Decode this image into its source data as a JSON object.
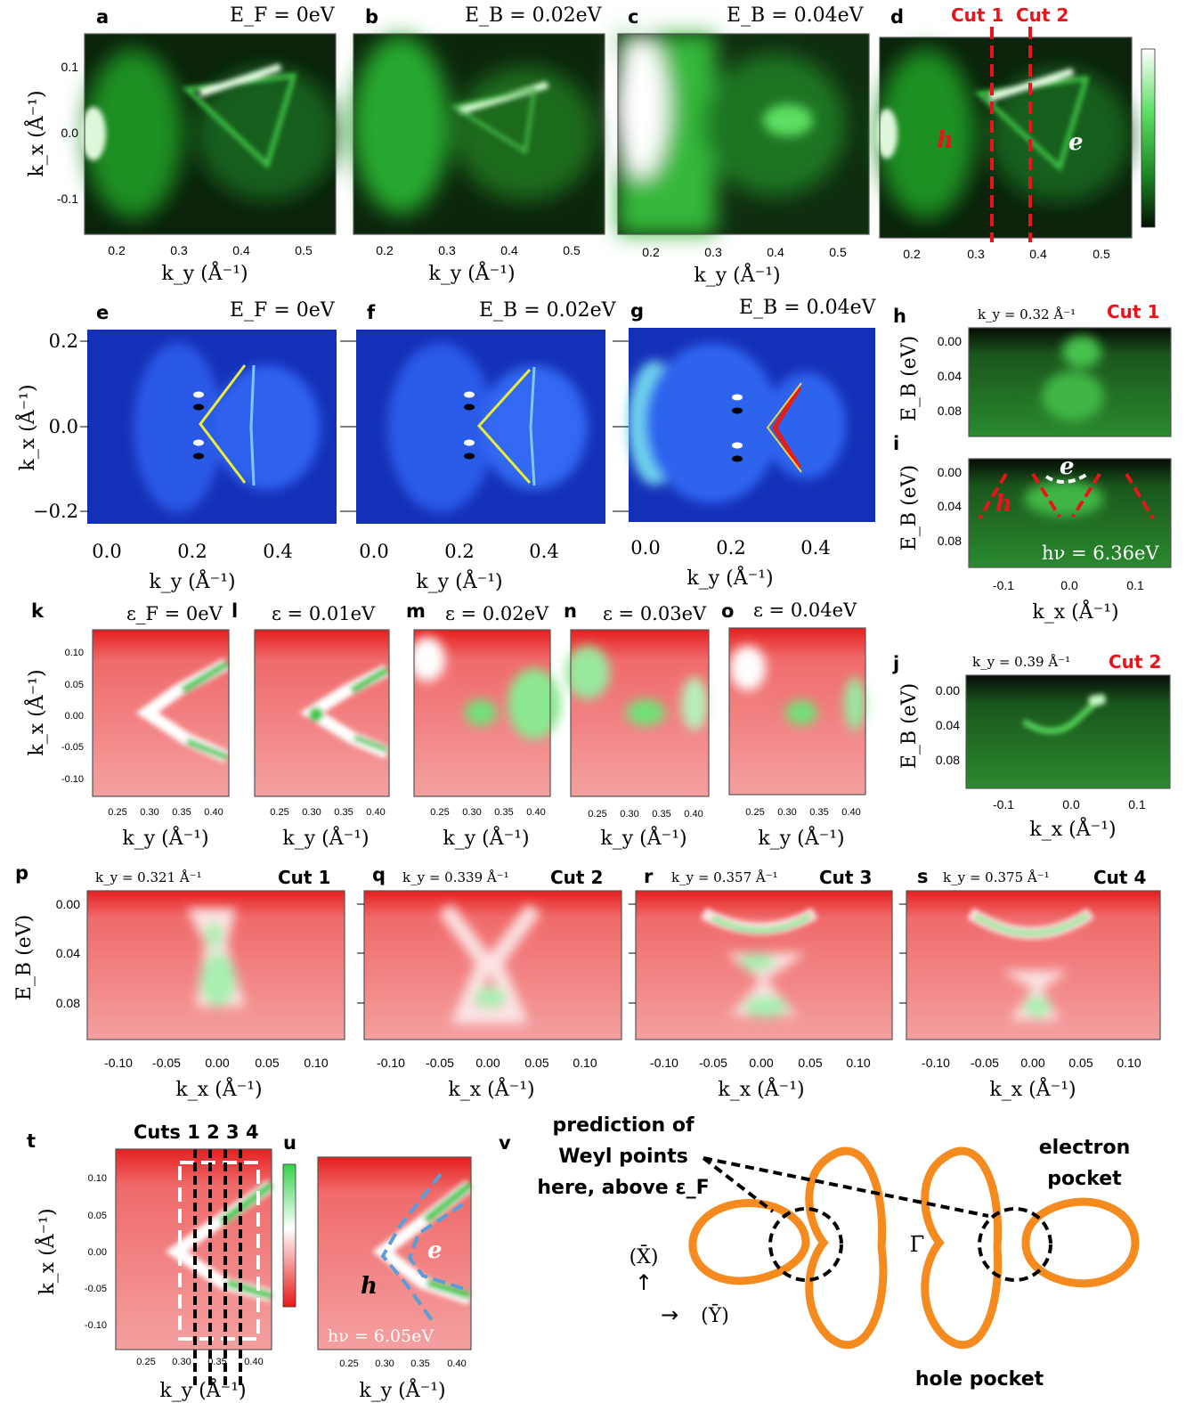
{
  "row1": {
    "panels": [
      {
        "label": "a",
        "title": "E_F = 0eV"
      },
      {
        "label": "b",
        "title": "E_B = 0.02eV"
      },
      {
        "label": "c",
        "title": "E_B = 0.04eV"
      },
      {
        "label": "d",
        "title": ""
      }
    ],
    "cut_labels": [
      "Cut 1",
      "Cut 2"
    ],
    "ylabel": "k_x (Å⁻¹)",
    "xlabel": "k_y (Å⁻¹)",
    "yticks": [
      "0.1",
      "0.0",
      "-0.1"
    ],
    "xticks": [
      "0.2",
      "0.3",
      "0.4",
      "0.5"
    ],
    "h": "h",
    "e": "e"
  },
  "row2": {
    "panels": [
      {
        "label": "e",
        "title": "E_F = 0eV"
      },
      {
        "label": "f",
        "title": "E_B = 0.02eV"
      },
      {
        "label": "g",
        "title": "E_B = 0.04eV"
      }
    ],
    "ylabel": "k_x (Å⁻¹)",
    "xlabel": "k_y (Å⁻¹)",
    "yticks": [
      "0.2",
      "0.0",
      "−0.2"
    ],
    "xticks": [
      "0.0",
      "0.2",
      "0.4"
    ]
  },
  "side": {
    "h": {
      "label": "h",
      "ky": "k_y = 0.32 Å⁻¹",
      "cut": "Cut 1"
    },
    "i": {
      "label": "i",
      "hv": "hν = 6.36eV",
      "h": "h",
      "e": "e"
    },
    "j": {
      "label": "j",
      "ky": "k_y = 0.39 Å⁻¹",
      "cut": "Cut 2"
    },
    "ylabel": "E_B (eV)",
    "yticks": [
      "0.00",
      "0.04",
      "0.08"
    ],
    "xticks": [
      "-0.1",
      "0.0",
      "0.1"
    ],
    "xlabel": "k_x (Å⁻¹)"
  },
  "row3": {
    "panels": [
      {
        "label": "k",
        "title": "ε_F = 0eV"
      },
      {
        "label": "l",
        "title": "ε = 0.01eV"
      },
      {
        "label": "m",
        "title": "ε = 0.02eV"
      },
      {
        "label": "n",
        "title": "ε = 0.03eV"
      },
      {
        "label": "o",
        "title": "ε = 0.04eV"
      }
    ],
    "ylabel": "k_x (Å⁻¹)",
    "xlabel": "k_y (Å⁻¹)",
    "yticks": [
      "0.10",
      "0.05",
      "0.00",
      "-0.05",
      "-0.10"
    ],
    "xticks": [
      "0.25",
      "0.30",
      "0.35",
      "0.40"
    ]
  },
  "row4": {
    "panels": [
      {
        "label": "p",
        "ky": "k_y = 0.321 Å⁻¹",
        "cut": "Cut 1"
      },
      {
        "label": "q",
        "ky": "k_y = 0.339 Å⁻¹",
        "cut": "Cut 2"
      },
      {
        "label": "r",
        "ky": "k_y = 0.357 Å⁻¹",
        "cut": "Cut 3"
      },
      {
        "label": "s",
        "ky": "k_y = 0.375 Å⁻¹",
        "cut": "Cut 4"
      }
    ],
    "ylabel": "E_B (eV)",
    "yticks": [
      "0.00",
      "0.04",
      "0.08"
    ],
    "xticks": [
      "-0.10",
      "-0.05",
      "0.00",
      "0.05",
      "0.10"
    ],
    "xlabel": "k_x (Å⁻¹)"
  },
  "row5": {
    "t": {
      "label": "t",
      "cuts_title": "Cuts 1 2 3 4"
    },
    "u": {
      "label": "u",
      "hv": "hν = 6.05eV",
      "h": "h",
      "e": "e"
    },
    "v": {
      "label": "v"
    },
    "ylabel": "k_x (Å⁻¹)",
    "xlabel": "k_y (Å⁻¹)",
    "yticks": [
      "0.10",
      "0.05",
      "0.00",
      "-0.05",
      "-0.10"
    ],
    "xticks": [
      "0.25",
      "0.30",
      "0.35",
      "0.40"
    ],
    "schematic": {
      "weyl_line1": "prediction of",
      "weyl_line2": "Weyl points",
      "weyl_line3": "here, above ε_F",
      "electron_line1": "electron",
      "electron_line2": "pocket",
      "hole": "hole pocket",
      "gamma": "Γ̄",
      "xbar": "(X̄)",
      "ybar": "(Ȳ)",
      "up_arrow": "↑",
      "right_arrow": "→"
    }
  },
  "colors": {
    "arpes_green": "#22c830",
    "arpes_dark": "#0b1a0b",
    "calc_blue": "#1830c8",
    "red_map": "#ef2a2a",
    "cut_red": "#e8141b",
    "pocket_orange": "#f58a1f",
    "guide_blue": "#5a9ed8"
  }
}
